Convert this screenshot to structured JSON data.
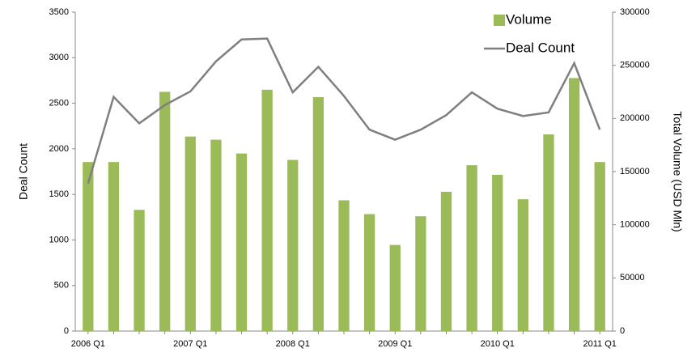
{
  "chart_data": {
    "type": "bar_line",
    "categories": [
      "2006 Q1",
      null,
      null,
      null,
      "2007 Q1",
      null,
      null,
      null,
      "2008 Q1",
      null,
      null,
      null,
      "2009 Q1",
      null,
      null,
      null,
      "2010 Q1",
      null,
      null,
      null,
      "2011 Q1"
    ],
    "series": [
      {
        "name": "Volume",
        "type": "bar",
        "axis": "y2",
        "color": "#9bbb59",
        "values": [
          159000,
          159000,
          114000,
          225000,
          183000,
          180000,
          167000,
          227000,
          161000,
          220000,
          123000,
          110000,
          81000,
          108000,
          131000,
          156000,
          147000,
          124000,
          185000,
          238000,
          159000
        ]
      },
      {
        "name": "Deal Count",
        "type": "line",
        "axis": "y",
        "color": "#7f7f7f",
        "values": [
          1620,
          2570,
          2280,
          2480,
          2630,
          2960,
          3200,
          3210,
          2620,
          2900,
          2580,
          2210,
          2100,
          2210,
          2370,
          2620,
          2440,
          2360,
          2400,
          2940,
          2210
        ]
      }
    ],
    "ylabel": "Deal Count",
    "y2label": "Total Volume (USD Mln)",
    "ylim": [
      0,
      3500
    ],
    "yticks": [
      0,
      500,
      1000,
      1500,
      2000,
      2500,
      3000,
      3500
    ],
    "y2lim": [
      0,
      300000
    ],
    "y2ticks": [
      0,
      50000,
      100000,
      150000,
      200000,
      250000,
      300000
    ],
    "legend": "top-right"
  }
}
